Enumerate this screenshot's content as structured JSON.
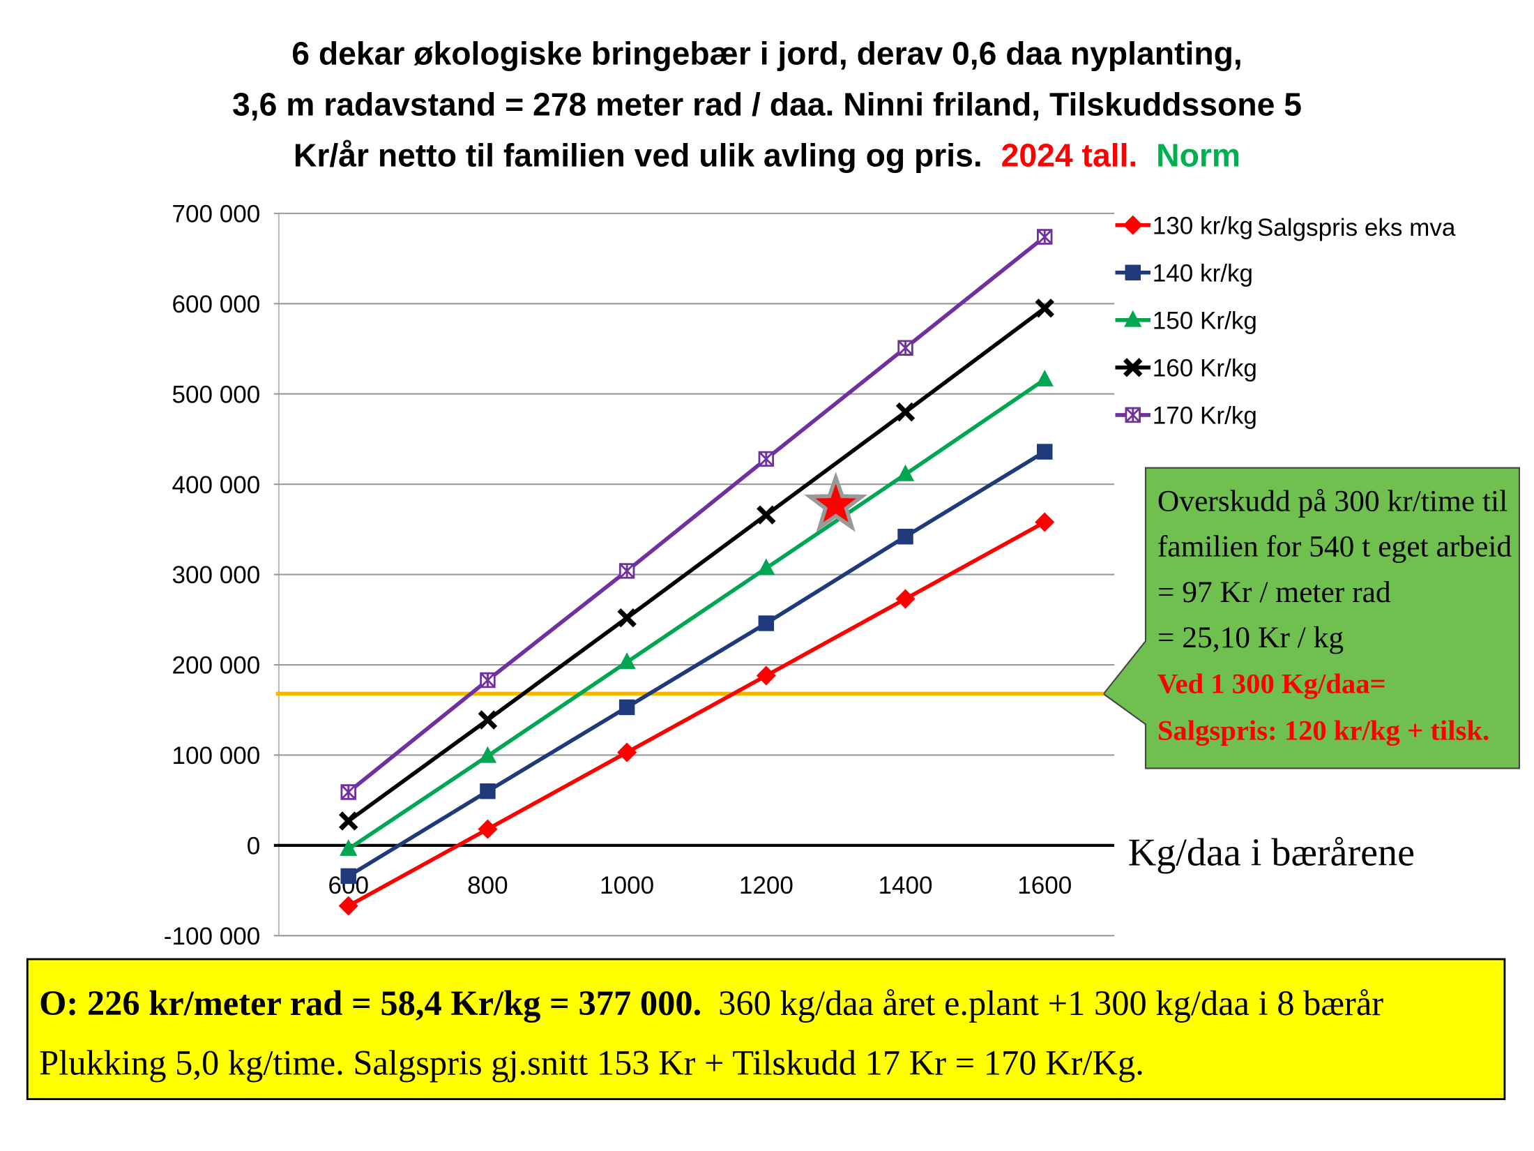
{
  "chart_data": {
    "type": "line",
    "title": [
      "6 dekar økologiske bringebær i jord, derav 0,6 daa nyplanting,",
      "3,6 m radavstand = 278 meter rad / daa. Ninni friland, Tilskuddssone 5"
    ],
    "title_parts": [
      {
        "text": "Kr/år netto til familien ved ulik avling og pris.",
        "color": "#000000"
      },
      {
        "text": "2024 tall.",
        "color": "#ff0000"
      },
      {
        "text": "Norm",
        "color": "#00b050"
      }
    ],
    "x": [
      600,
      800,
      1000,
      1200,
      1400,
      1600
    ],
    "xlim": [
      500,
      1700
    ],
    "x_label": "Kg/daa i bærårene",
    "ylim": [
      -100000,
      700000
    ],
    "yticks": [
      {
        "value": -100000,
        "label": "-100 000"
      },
      0,
      {
        "value": 100000,
        "label": "100 000"
      },
      {
        "value": 200000,
        "label": "200 000"
      },
      {
        "value": 300000,
        "label": "300 000"
      },
      {
        "value": 400000,
        "label": "400 000"
      },
      {
        "value": 500000,
        "label": "500 000"
      },
      {
        "value": 600000,
        "label": "600 000"
      },
      {
        "value": 700000,
        "label": "700 000"
      }
    ],
    "grid": true,
    "legend_title": "Salgspris eks mva",
    "series": [
      {
        "name": "130 kr/kg",
        "color": "#ff0000",
        "marker": "diamond",
        "values": [
          -67000,
          18000,
          103000,
          188000,
          273000,
          358000
        ]
      },
      {
        "name": "140 kr/kg",
        "color": "#1f3a7a",
        "marker": "square",
        "values": [
          -34000,
          60000,
          153000,
          246000,
          342000,
          436000
        ]
      },
      {
        "name": "150 Kr/kg",
        "color": "#00a650",
        "marker": "triangle",
        "values": [
          -4000,
          99000,
          203000,
          307000,
          411000,
          516000
        ]
      },
      {
        "name": "160 Kr/kg",
        "color": "#000000",
        "marker": "x",
        "values": [
          27000,
          139000,
          252000,
          366000,
          480000,
          595000
        ]
      },
      {
        "name": "170 Kr/kg",
        "color": "#7030a0",
        "marker": "boxstar",
        "values": [
          59000,
          183000,
          304000,
          428000,
          551000,
          674000
        ]
      }
    ],
    "hline": {
      "value": 168000,
      "color": "#f5b800"
    },
    "star": {
      "x": 1300,
      "y": 377000,
      "color": "#ff0000"
    },
    "callout": {
      "lines": [
        "Overskudd på 300 kr/time til",
        "familien for 540 t eget arbeid",
        "= 97 Kr / meter rad",
        "= 25,10 Kr / kg"
      ],
      "highlight": [
        "Ved 1 300 Kg/daa=",
        "Salgspris: 120 kr/kg + tilsk."
      ]
    },
    "summary": {
      "bold": "O: 226 kr/meter rad = 58,4 Kr/kg = 377 000.",
      "rest": "360 kg/daa året e.plant +1 300 kg/daa i 8 bærår",
      "line2": "Plukking 5,0 kg/time. Salgspris gj.snitt 153 Kr + Tilskudd 17 Kr = 170 Kr/Kg."
    }
  }
}
